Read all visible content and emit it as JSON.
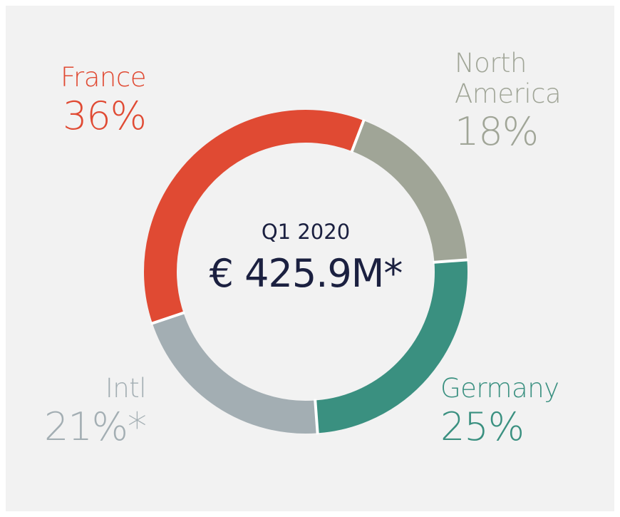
{
  "chart_data": {
    "type": "donut",
    "categories": [
      "France",
      "North America",
      "Germany",
      "Intl"
    ],
    "values": [
      36,
      18,
      25,
      21
    ],
    "value_labels": [
      "36%",
      "18%",
      "25%",
      "21%*"
    ],
    "colors": [
      "#e04a33",
      "#a0a597",
      "#3a9080",
      "#a3aeb3"
    ],
    "center_title": "Q1 2020",
    "center_value": "€ 425.9M*"
  }
}
